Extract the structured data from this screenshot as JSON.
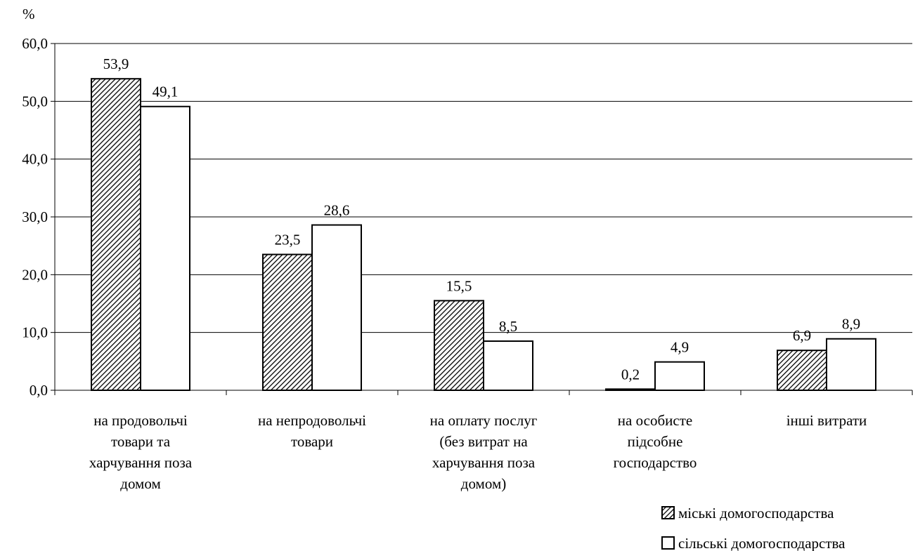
{
  "chart_data": {
    "type": "bar",
    "title": "",
    "ylabel": "%",
    "xlabel": "",
    "ylim": [
      0,
      60
    ],
    "yticks": [
      "0,0",
      "10,0",
      "20,0",
      "30,0",
      "40,0",
      "50,0",
      "60,0"
    ],
    "ytick_values": [
      0,
      10,
      20,
      30,
      40,
      50,
      60
    ],
    "grid": true,
    "legend_position": "bottom-right",
    "categories": [
      [
        "на продовольчі",
        "товари та",
        "харчування поза",
        "домом"
      ],
      [
        "на непродовольчі",
        "товари"
      ],
      [
        "на оплату послуг",
        "(без витрат на",
        "харчування поза",
        "домом)"
      ],
      [
        "на особисте",
        "підсобне",
        "господарство"
      ],
      [
        "інші витрати"
      ]
    ],
    "series": [
      {
        "name": "міські домогосподарства",
        "values": [
          53.9,
          23.5,
          15.5,
          0.2,
          6.9
        ],
        "labels": [
          "53,9",
          "23,5",
          "15,5",
          "0,2",
          "6,9"
        ],
        "fill": "hatched",
        "color": "#000000"
      },
      {
        "name": "сільські домогосподарства",
        "values": [
          49.1,
          28.6,
          8.5,
          4.9,
          8.9
        ],
        "labels": [
          "49,1",
          "28,6",
          "8,5",
          "4,9",
          "8,9"
        ],
        "fill": "white",
        "color": "#000000"
      }
    ]
  }
}
